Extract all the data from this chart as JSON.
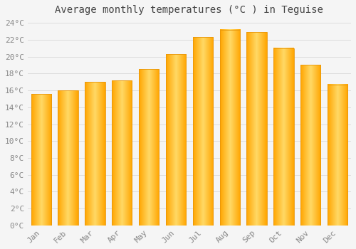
{
  "title": "Average monthly temperatures (°C ) in Teguise",
  "months": [
    "Jan",
    "Feb",
    "Mar",
    "Apr",
    "May",
    "Jun",
    "Jul",
    "Aug",
    "Sep",
    "Oct",
    "Nov",
    "Dec"
  ],
  "values": [
    15.6,
    16.0,
    17.0,
    17.2,
    18.5,
    20.3,
    22.3,
    23.2,
    22.9,
    21.0,
    19.0,
    16.7
  ],
  "bar_color_light": "#FFD966",
  "bar_color_dark": "#FFA500",
  "background_color": "#F5F5F5",
  "plot_bg_color": "#F5F5F5",
  "grid_color": "#DDDDDD",
  "ytick_labels": [
    "0°C",
    "2°C",
    "4°C",
    "6°C",
    "8°C",
    "10°C",
    "12°C",
    "14°C",
    "16°C",
    "18°C",
    "20°C",
    "22°C",
    "24°C"
  ],
  "ytick_values": [
    0,
    2,
    4,
    6,
    8,
    10,
    12,
    14,
    16,
    18,
    20,
    22,
    24
  ],
  "ylim": [
    0,
    24.5
  ],
  "title_fontsize": 10,
  "tick_fontsize": 8,
  "title_color": "#444444",
  "tick_color": "#888888",
  "bar_width": 0.75
}
